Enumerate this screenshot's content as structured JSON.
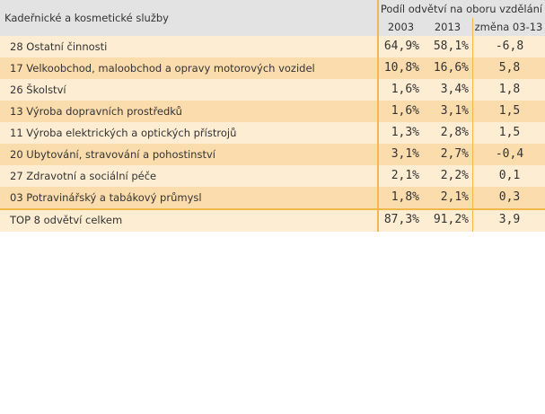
{
  "header": {
    "title": "Kadeřnické a kosmetické služby",
    "group_label": "Podíl odvětví na oboru vzdělání",
    "col_a": "2003",
    "col_b": "2013",
    "col_c": "změna 03-13"
  },
  "rows": [
    {
      "label": "28 Ostatní činnosti",
      "a": "64,9%",
      "b": "58,1%",
      "c": "-6,8"
    },
    {
      "label": "17 Velkoobchod, maloobchod a opravy motorových vozidel",
      "a": "10,8%",
      "b": "16,6%",
      "c": "5,8"
    },
    {
      "label": "26 Školství",
      "a": "1,6%",
      "b": "3,4%",
      "c": "1,8"
    },
    {
      "label": "13 Výroba dopravních prostředků",
      "a": "1,6%",
      "b": "3,1%",
      "c": "1,5"
    },
    {
      "label": "11 Výroba elektrických a optických přístrojů",
      "a": "1,3%",
      "b": "2,8%",
      "c": "1,5"
    },
    {
      "label": "20 Ubytování, stravování a pohostinství",
      "a": "3,1%",
      "b": "2,7%",
      "c": "-0,4"
    },
    {
      "label": "27 Zdravotní a sociální péče",
      "a": "2,1%",
      "b": "2,2%",
      "c": "0,1"
    },
    {
      "label": "03 Potravinářský a tabákový průmysl",
      "a": "1,8%",
      "b": "2,1%",
      "c": "0,3"
    }
  ],
  "total": {
    "label": "TOP 8 odvětví celkem",
    "a": "87,3%",
    "b": "91,2%",
    "c": "3,9"
  },
  "colors": {
    "header_bg": "#e3e3e3",
    "row_light": "#fdedd3",
    "row_dark": "#fbdcad",
    "accent_line": "#f2b84b"
  }
}
